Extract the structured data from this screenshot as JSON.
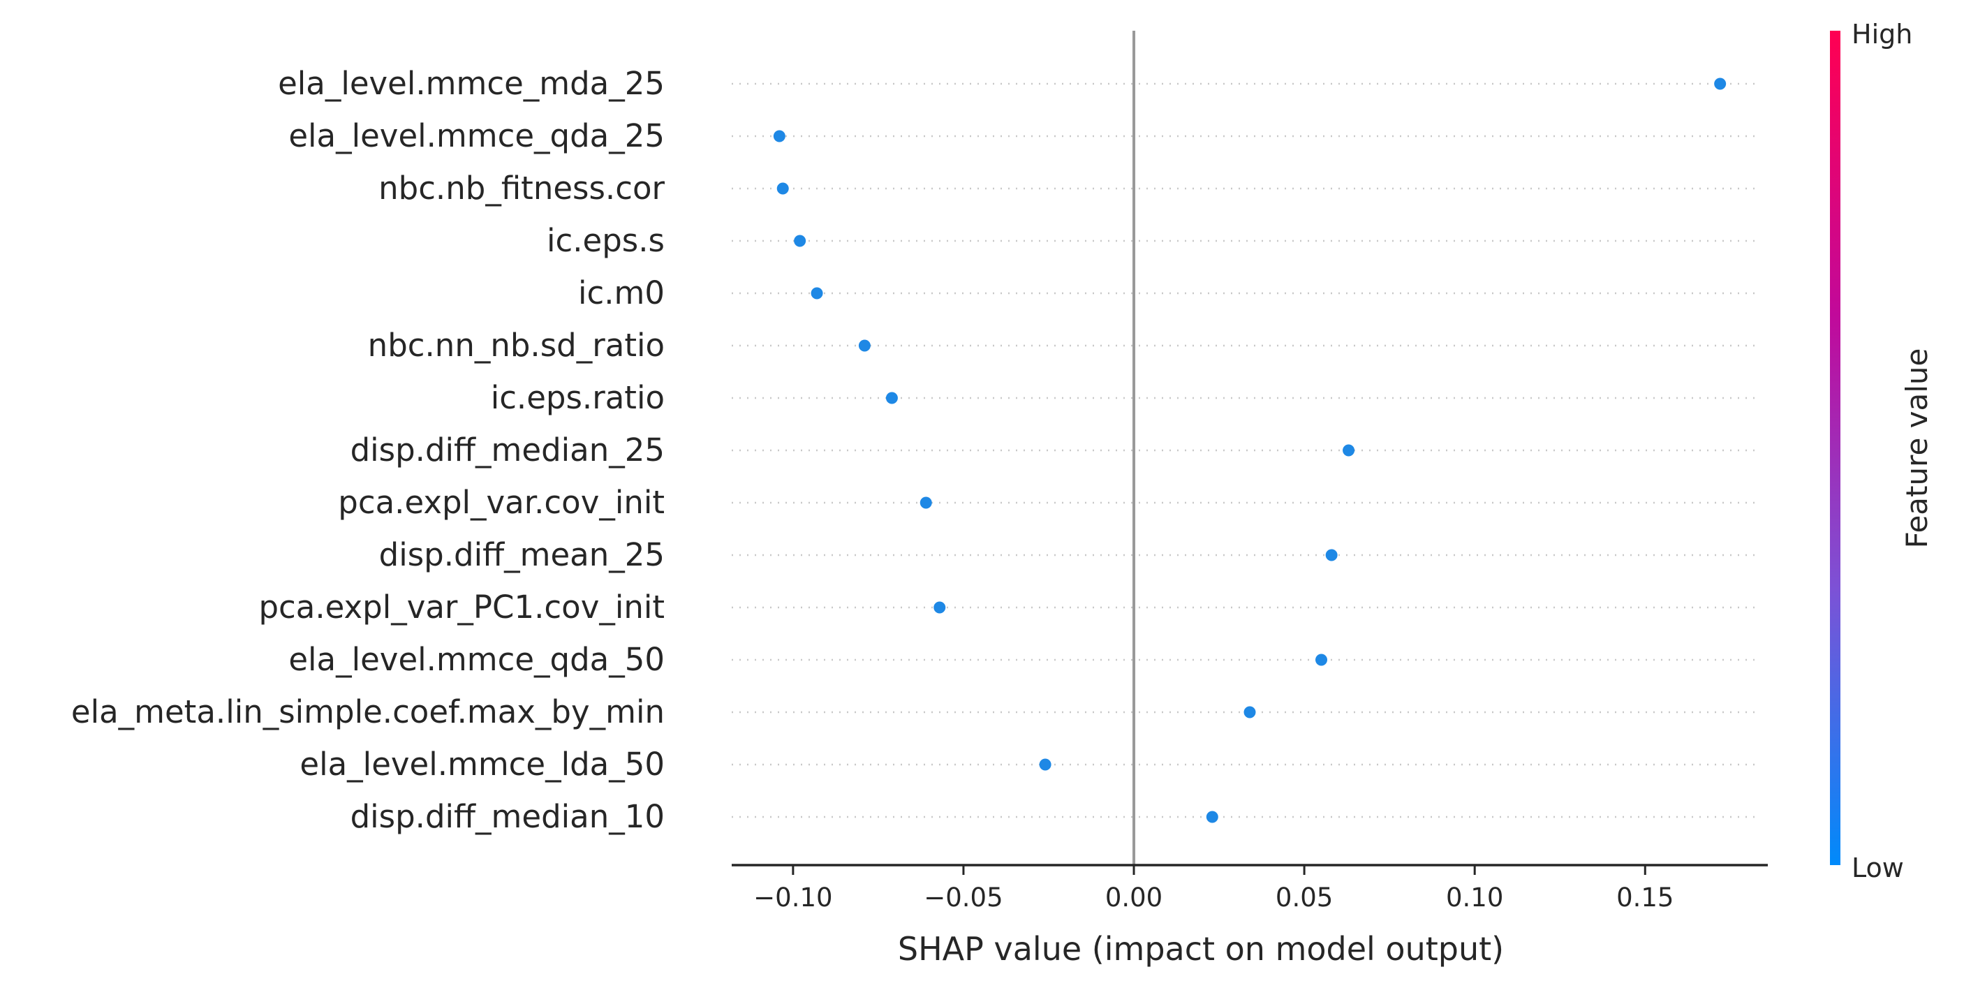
{
  "chart_data": {
    "type": "scatter",
    "xlabel": "SHAP value (impact on model output)",
    "xlim": [
      -0.118,
      0.186
    ],
    "xticks": [
      -0.1,
      -0.05,
      0.0,
      0.05,
      0.1,
      0.15
    ],
    "xtick_labels": [
      "−0.10",
      "−0.05",
      "0.00",
      "0.05",
      "0.10",
      "0.15"
    ],
    "zero_line": 0.0,
    "grid": "dotted horizontal row lines",
    "point_color": "#1E88E5",
    "features": [
      {
        "name": "ela_level.mmce_mda_25",
        "shap": 0.172
      },
      {
        "name": "ela_level.mmce_qda_25",
        "shap": -0.104
      },
      {
        "name": "nbc.nb_fitness.cor",
        "shap": -0.103
      },
      {
        "name": "ic.eps.s",
        "shap": -0.098
      },
      {
        "name": "ic.m0",
        "shap": -0.093
      },
      {
        "name": "nbc.nn_nb.sd_ratio",
        "shap": -0.079
      },
      {
        "name": "ic.eps.ratio",
        "shap": -0.071
      },
      {
        "name": "disp.diff_median_25",
        "shap": 0.063
      },
      {
        "name": "pca.expl_var.cov_init",
        "shap": -0.061
      },
      {
        "name": "disp.diff_mean_25",
        "shap": 0.058
      },
      {
        "name": "pca.expl_var_PC1.cov_init",
        "shap": -0.057
      },
      {
        "name": "ela_level.mmce_qda_50",
        "shap": 0.055
      },
      {
        "name": "ela_meta.lin_simple.coef.max_by_min",
        "shap": 0.034
      },
      {
        "name": "ela_level.mmce_lda_50",
        "shap": -0.026
      },
      {
        "name": "disp.diff_median_10",
        "shap": 0.023
      }
    ],
    "colorbar": {
      "title": "Feature value",
      "high_label": "High",
      "low_label": "Low",
      "colors": [
        "#008AFA",
        "#7C52D6",
        "#C1099A",
        "#FF0052"
      ]
    }
  }
}
